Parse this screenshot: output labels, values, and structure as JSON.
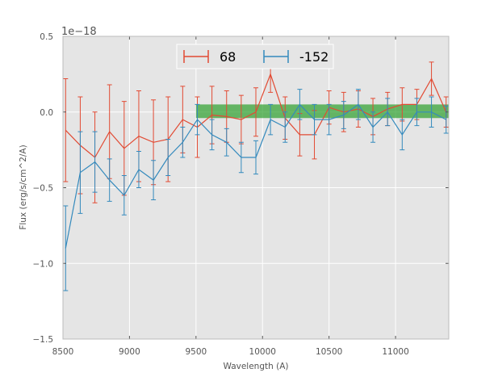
{
  "chart_data": {
    "type": "line",
    "style": "ggplot-errorbar",
    "xlabel": "Wavelength (A)",
    "ylabel": "Flux (erg/s/cm^2/A)",
    "y_offset_label": "1e−18",
    "xlim": [
      8500,
      11400
    ],
    "ylim": [
      -1.5,
      0.5
    ],
    "x_ticks": [
      8500,
      9000,
      9500,
      10000,
      10500,
      11000
    ],
    "x_tick_labels": [
      "8500",
      "9000",
      "9500",
      "10000",
      "10500",
      "11000"
    ],
    "y_ticks": [
      -1.5,
      -1.0,
      -0.5,
      0.0,
      0.5
    ],
    "y_tick_labels": [
      "−1.5",
      "−1.0",
      "−0.5",
      "0.0",
      "0.5"
    ],
    "grid": true,
    "legend_position": "top-center",
    "legend_columns": 2,
    "colors": {
      "background": "#e5e5e5",
      "grid": "#ffffff",
      "series_68": "#e24a33",
      "series_m152": "#348abd",
      "band": "#2ca02c"
    },
    "band": {
      "x_start": 9500,
      "x_end": 11400,
      "y_low": -0.04,
      "y_high": 0.05
    },
    "series": [
      {
        "name": "68",
        "x": [
          8520,
          8630,
          8740,
          8850,
          8960,
          9070,
          9180,
          9290,
          9400,
          9510,
          9620,
          9730,
          9840,
          9950,
          10060,
          10170,
          10280,
          10390,
          10500,
          10610,
          10720,
          10830,
          10940,
          11050,
          11160,
          11270,
          11380
        ],
        "y": [
          -0.12,
          -0.22,
          -0.3,
          -0.13,
          -0.24,
          -0.16,
          -0.2,
          -0.18,
          -0.05,
          -0.1,
          -0.02,
          -0.03,
          -0.05,
          0.0,
          0.25,
          -0.04,
          -0.15,
          -0.15,
          0.03,
          0.0,
          0.02,
          -0.03,
          0.02,
          0.05,
          0.05,
          0.22,
          0.0
        ],
        "err": [
          0.34,
          0.32,
          0.3,
          0.31,
          0.31,
          0.3,
          0.28,
          0.28,
          0.22,
          0.2,
          0.19,
          0.17,
          0.16,
          0.16,
          0.12,
          0.14,
          0.14,
          0.16,
          0.11,
          0.13,
          0.12,
          0.12,
          0.11,
          0.11,
          0.1,
          0.11,
          0.1
        ]
      },
      {
        "name": "-152",
        "x": [
          8520,
          8630,
          8740,
          8850,
          8960,
          9070,
          9180,
          9290,
          9400,
          9510,
          9620,
          9730,
          9840,
          9950,
          10060,
          10170,
          10280,
          10390,
          10500,
          10610,
          10720,
          10830,
          10940,
          11050,
          11160,
          11270,
          11380
        ],
        "y": [
          -0.9,
          -0.4,
          -0.33,
          -0.45,
          -0.55,
          -0.38,
          -0.45,
          -0.3,
          -0.2,
          -0.05,
          -0.15,
          -0.2,
          -0.3,
          -0.3,
          -0.05,
          -0.1,
          0.05,
          -0.05,
          -0.05,
          -0.02,
          0.05,
          -0.1,
          0.0,
          -0.15,
          0.0,
          0.0,
          -0.05
        ],
        "err": [
          0.28,
          0.27,
          0.2,
          0.14,
          0.13,
          0.12,
          0.13,
          0.12,
          0.1,
          0.1,
          0.1,
          0.09,
          0.1,
          0.11,
          0.1,
          0.1,
          0.1,
          0.1,
          0.1,
          0.09,
          0.1,
          0.1,
          0.09,
          0.1,
          0.09,
          0.1,
          0.09
        ]
      }
    ]
  }
}
